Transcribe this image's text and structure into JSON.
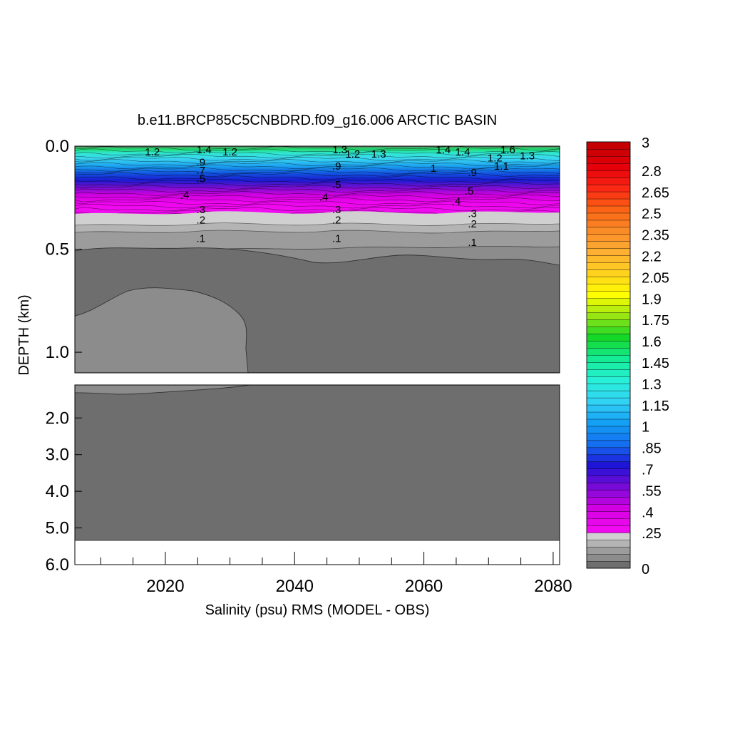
{
  "chart_data": {
    "type": "heatmap",
    "title": "b.e11.BRCP85C5CNBDRD.f09_g16.006 ARCTIC BASIN",
    "xlabel": "Salinity (psu) RMS (MODEL - OBS)",
    "ylabel": "DEPTH (km)",
    "x_range": [
      2006,
      2081
    ],
    "x_ticks": [
      2020,
      2040,
      2060,
      2080
    ],
    "x_tick_labels": [
      "2020",
      "2040",
      "2060",
      "2080"
    ],
    "upper_panel": {
      "depth_range_km": [
        0.0,
        1.1
      ],
      "y_ticks": [
        0.0,
        0.5,
        1.0
      ],
      "y_tick_labels": [
        "0.0",
        "0.5",
        "1.0"
      ]
    },
    "lower_panel": {
      "depth_range_km": [
        1.1,
        6.0
      ],
      "y_ticks": [
        2.0,
        3.0,
        4.0,
        5.0,
        6.0
      ],
      "y_tick_labels": [
        "2.0",
        "3.0",
        "4.0",
        "5.0",
        "6.0"
      ],
      "data_bottom_km": 5.35
    },
    "colorbar": {
      "min": 0,
      "max": 3,
      "step": 0.05,
      "labels": [
        "3",
        "2.8",
        "2.65",
        "2.5",
        "2.35",
        "2.2",
        "2.05",
        "1.9",
        "1.75",
        "1.6",
        "1.45",
        "1.3",
        "1.15",
        "1",
        ".85",
        ".7",
        ".55",
        ".4",
        ".25",
        "0"
      ],
      "label_values": [
        3,
        2.8,
        2.65,
        2.5,
        2.35,
        2.2,
        2.05,
        1.9,
        1.75,
        1.6,
        1.45,
        1.3,
        1.15,
        1,
        0.85,
        0.7,
        0.55,
        0.4,
        0.25,
        0
      ]
    },
    "contour_labels": [
      {
        "text": "1.2",
        "x": 2018,
        "depth": 0.01
      },
      {
        "text": "1.4",
        "x": 2026,
        "depth": 0.0
      },
      {
        "text": "1.2",
        "x": 2030,
        "depth": 0.01
      },
      {
        "text": ".9",
        "x": 2025.5,
        "depth": 0.06
      },
      {
        "text": ".7",
        "x": 2025.5,
        "depth": 0.1
      },
      {
        "text": ".5",
        "x": 2025.5,
        "depth": 0.14
      },
      {
        "text": ".4",
        "x": 2023,
        "depth": 0.22
      },
      {
        "text": ".3",
        "x": 2025.5,
        "depth": 0.29
      },
      {
        "text": ".2",
        "x": 2025.5,
        "depth": 0.34
      },
      {
        "text": ".1",
        "x": 2025.5,
        "depth": 0.43
      },
      {
        "text": "1.3",
        "x": 2047,
        "depth": 0.0
      },
      {
        "text": "1.2",
        "x": 2049,
        "depth": 0.02
      },
      {
        "text": "1.3",
        "x": 2053,
        "depth": 0.02
      },
      {
        "text": ".9",
        "x": 2046.5,
        "depth": 0.08
      },
      {
        "text": ".5",
        "x": 2046.5,
        "depth": 0.17
      },
      {
        "text": ".4",
        "x": 2044.5,
        "depth": 0.23
      },
      {
        "text": ".3",
        "x": 2046.5,
        "depth": 0.29
      },
      {
        "text": ".2",
        "x": 2046.5,
        "depth": 0.34
      },
      {
        "text": ".1",
        "x": 2046.5,
        "depth": 0.43
      },
      {
        "text": "1.4",
        "x": 2063,
        "depth": 0.0
      },
      {
        "text": "1.4",
        "x": 2066,
        "depth": 0.01
      },
      {
        "text": "1.6",
        "x": 2073,
        "depth": 0.0
      },
      {
        "text": "1.2",
        "x": 2071,
        "depth": 0.04
      },
      {
        "text": "1.1",
        "x": 2072,
        "depth": 0.08
      },
      {
        "text": "1.3",
        "x": 2076,
        "depth": 0.03
      },
      {
        "text": "1",
        "x": 2061.5,
        "depth": 0.09
      },
      {
        "text": ".9",
        "x": 2067.5,
        "depth": 0.11
      },
      {
        "text": ".5",
        "x": 2067,
        "depth": 0.2
      },
      {
        "text": ".4",
        "x": 2065,
        "depth": 0.25
      },
      {
        "text": ".3",
        "x": 2067.5,
        "depth": 0.31
      },
      {
        "text": ".2",
        "x": 2067.5,
        "depth": 0.36
      },
      {
        "text": ".1",
        "x": 2067.5,
        "depth": 0.45
      }
    ]
  }
}
